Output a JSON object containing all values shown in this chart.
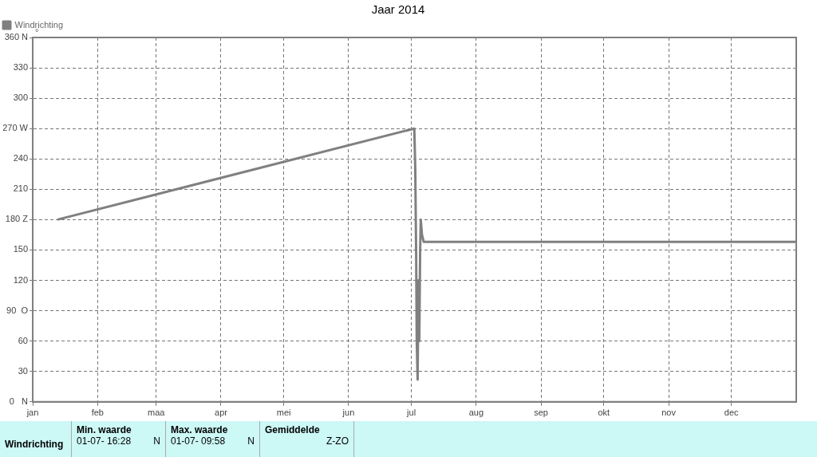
{
  "chart_data": {
    "type": "line",
    "title": "Jaar 2014",
    "ylabel": "°",
    "x": [
      "2014-01-12T19:00",
      "2014-07-02T10:00",
      "2014-07-02T21:00",
      "2014-07-03T07:00",
      "2014-07-03T14:00",
      "2014-07-04T00:00",
      "2014-07-04T10:00",
      "2014-07-04T19:00",
      "2014-07-05T05:00",
      "2014-07-05T12:00",
      "2014-07-06T02:00",
      "2014-07-06T22:00",
      "2014-12-31T23:59"
    ],
    "series": [
      {
        "name": "Windrichting",
        "color": "#808080",
        "values": [
          180,
          270,
          230,
          146,
          60,
          22,
          120,
          60,
          150,
          180,
          165,
          158,
          158
        ]
      }
    ],
    "xlim": [
      "2014-01-01",
      "2015-01-01"
    ],
    "xticks": [
      {
        "value": "2014-01-01",
        "label": "jan"
      },
      {
        "value": "2014-02-01",
        "label": "feb"
      },
      {
        "value": "2014-03-01",
        "label": "maa"
      },
      {
        "value": "2014-04-01",
        "label": "apr"
      },
      {
        "value": "2014-05-01",
        "label": "mei"
      },
      {
        "value": "2014-06-01",
        "label": "jun"
      },
      {
        "value": "2014-07-01",
        "label": "jul"
      },
      {
        "value": "2014-08-01",
        "label": "aug"
      },
      {
        "value": "2014-09-01",
        "label": "sep"
      },
      {
        "value": "2014-10-01",
        "label": "okt"
      },
      {
        "value": "2014-11-01",
        "label": "nov"
      },
      {
        "value": "2014-12-01",
        "label": "dec"
      }
    ],
    "ylim": [
      0,
      360
    ],
    "yticks": [
      {
        "value": 0,
        "label": "0   N"
      },
      30,
      60,
      {
        "value": 90,
        "label": "90  O"
      },
      120,
      150,
      {
        "value": 180,
        "label": "180 Z"
      },
      210,
      240,
      {
        "value": 270,
        "label": "270 W"
      },
      300,
      330,
      {
        "value": 360,
        "label": "360 N"
      }
    ],
    "grid": true,
    "legend": "top left",
    "marker": "none",
    "line_style": "solid",
    "annotations": [
      "Windrichting",
      "Min. waarde",
      "01-07- 16:28",
      "N",
      "Max. waarde",
      "01-07- 09:58",
      "N",
      "Gemiddelde",
      "Z-ZO"
    ]
  }
}
